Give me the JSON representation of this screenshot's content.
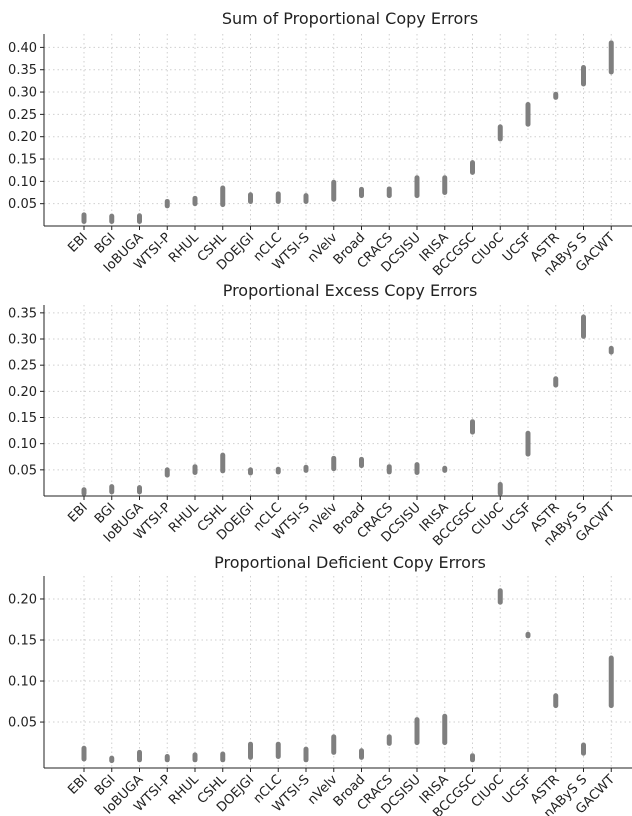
{
  "chart_data": [
    {
      "type": "range",
      "title": "Sum of Proportional Copy Errors",
      "categories": [
        "EBI",
        "BGI",
        "IoBUGA",
        "WTSI-P",
        "RHUL",
        "CSHL",
        "DOEJGI",
        "nCLC",
        "WTSI-S",
        "nVelv",
        "Broad",
        "CRACS",
        "DCSISU",
        "IRISA",
        "BCCGSC",
        "CIUoC",
        "UCSF",
        "ASTR",
        "nAByS S",
        "GACWT"
      ],
      "yticks": [
        "0.05",
        "0.10",
        "0.15",
        "0.20",
        "0.25",
        "0.30",
        "0.35",
        "0.40"
      ],
      "ylim": [
        0,
        0.43
      ],
      "ranges": [
        [
          0.01,
          0.025
        ],
        [
          0.01,
          0.022
        ],
        [
          0.01,
          0.023
        ],
        [
          0.045,
          0.055
        ],
        [
          0.05,
          0.062
        ],
        [
          0.048,
          0.085
        ],
        [
          0.055,
          0.07
        ],
        [
          0.055,
          0.072
        ],
        [
          0.055,
          0.068
        ],
        [
          0.06,
          0.098
        ],
        [
          0.068,
          0.082
        ],
        [
          0.068,
          0.083
        ],
        [
          0.068,
          0.108
        ],
        [
          0.075,
          0.108
        ],
        [
          0.12,
          0.142
        ],
        [
          0.195,
          0.222
        ],
        [
          0.228,
          0.272
        ],
        [
          0.288,
          0.295
        ],
        [
          0.318,
          0.355
        ],
        [
          0.345,
          0.41
        ]
      ]
    },
    {
      "type": "range",
      "title": "Proportional Excess Copy Errors",
      "categories": [
        "EBI",
        "BGI",
        "IoBUGA",
        "WTSI-P",
        "RHUL",
        "CSHL",
        "DOEJGI",
        "nCLC",
        "WTSI-S",
        "nVelv",
        "Broad",
        "CRACS",
        "DCSISU",
        "IRISA",
        "BCCGSC",
        "CIUoC",
        "UCSF",
        "ASTR",
        "nAByS S",
        "GACWT"
      ],
      "yticks": [
        "0.05",
        "0.10",
        "0.15",
        "0.20",
        "0.25",
        "0.30",
        "0.35"
      ],
      "ylim": [
        0,
        0.365
      ],
      "ranges": [
        [
          0.005,
          0.012
        ],
        [
          0.008,
          0.018
        ],
        [
          0.008,
          0.016
        ],
        [
          0.04,
          0.05
        ],
        [
          0.045,
          0.056
        ],
        [
          0.048,
          0.078
        ],
        [
          0.044,
          0.05
        ],
        [
          0.046,
          0.051
        ],
        [
          0.049,
          0.055
        ],
        [
          0.052,
          0.072
        ],
        [
          0.058,
          0.07
        ],
        [
          0.046,
          0.056
        ],
        [
          0.045,
          0.06
        ],
        [
          0.049,
          0.053
        ],
        [
          0.122,
          0.142
        ],
        [
          0.005,
          0.022
        ],
        [
          0.08,
          0.12
        ],
        [
          0.212,
          0.224
        ],
        [
          0.305,
          0.342
        ],
        [
          0.275,
          0.282
        ]
      ]
    },
    {
      "type": "range",
      "title": "Proportional Deficient Copy Errors",
      "categories": [
        "EBI",
        "BGI",
        "IoBUGA",
        "WTSI-P",
        "RHUL",
        "CSHL",
        "DOEJGI",
        "nCLC",
        "WTSI-S",
        "nVelv",
        "Broad",
        "CRACS",
        "DCSISU",
        "IRISA",
        "BCCGSC",
        "CIUoC",
        "UCSF",
        "ASTR",
        "nAByS S",
        "GACWT"
      ],
      "yticks": [
        "0.05",
        "0.10",
        "0.15",
        "0.20"
      ],
      "ylim": [
        -0.006,
        0.228
      ],
      "ranges": [
        [
          0.005,
          0.018
        ],
        [
          0.003,
          0.006
        ],
        [
          0.004,
          0.013
        ],
        [
          0.004,
          0.008
        ],
        [
          0.004,
          0.01
        ],
        [
          0.004,
          0.011
        ],
        [
          0.007,
          0.023
        ],
        [
          0.008,
          0.023
        ],
        [
          0.004,
          0.017
        ],
        [
          0.013,
          0.032
        ],
        [
          0.007,
          0.015
        ],
        [
          0.024,
          0.032
        ],
        [
          0.025,
          0.053
        ],
        [
          0.025,
          0.057
        ],
        [
          0.004,
          0.009
        ],
        [
          0.196,
          0.21
        ],
        [
          0.155,
          0.157
        ],
        [
          0.07,
          0.082
        ],
        [
          0.012,
          0.022
        ],
        [
          0.07,
          0.128
        ]
      ]
    }
  ]
}
